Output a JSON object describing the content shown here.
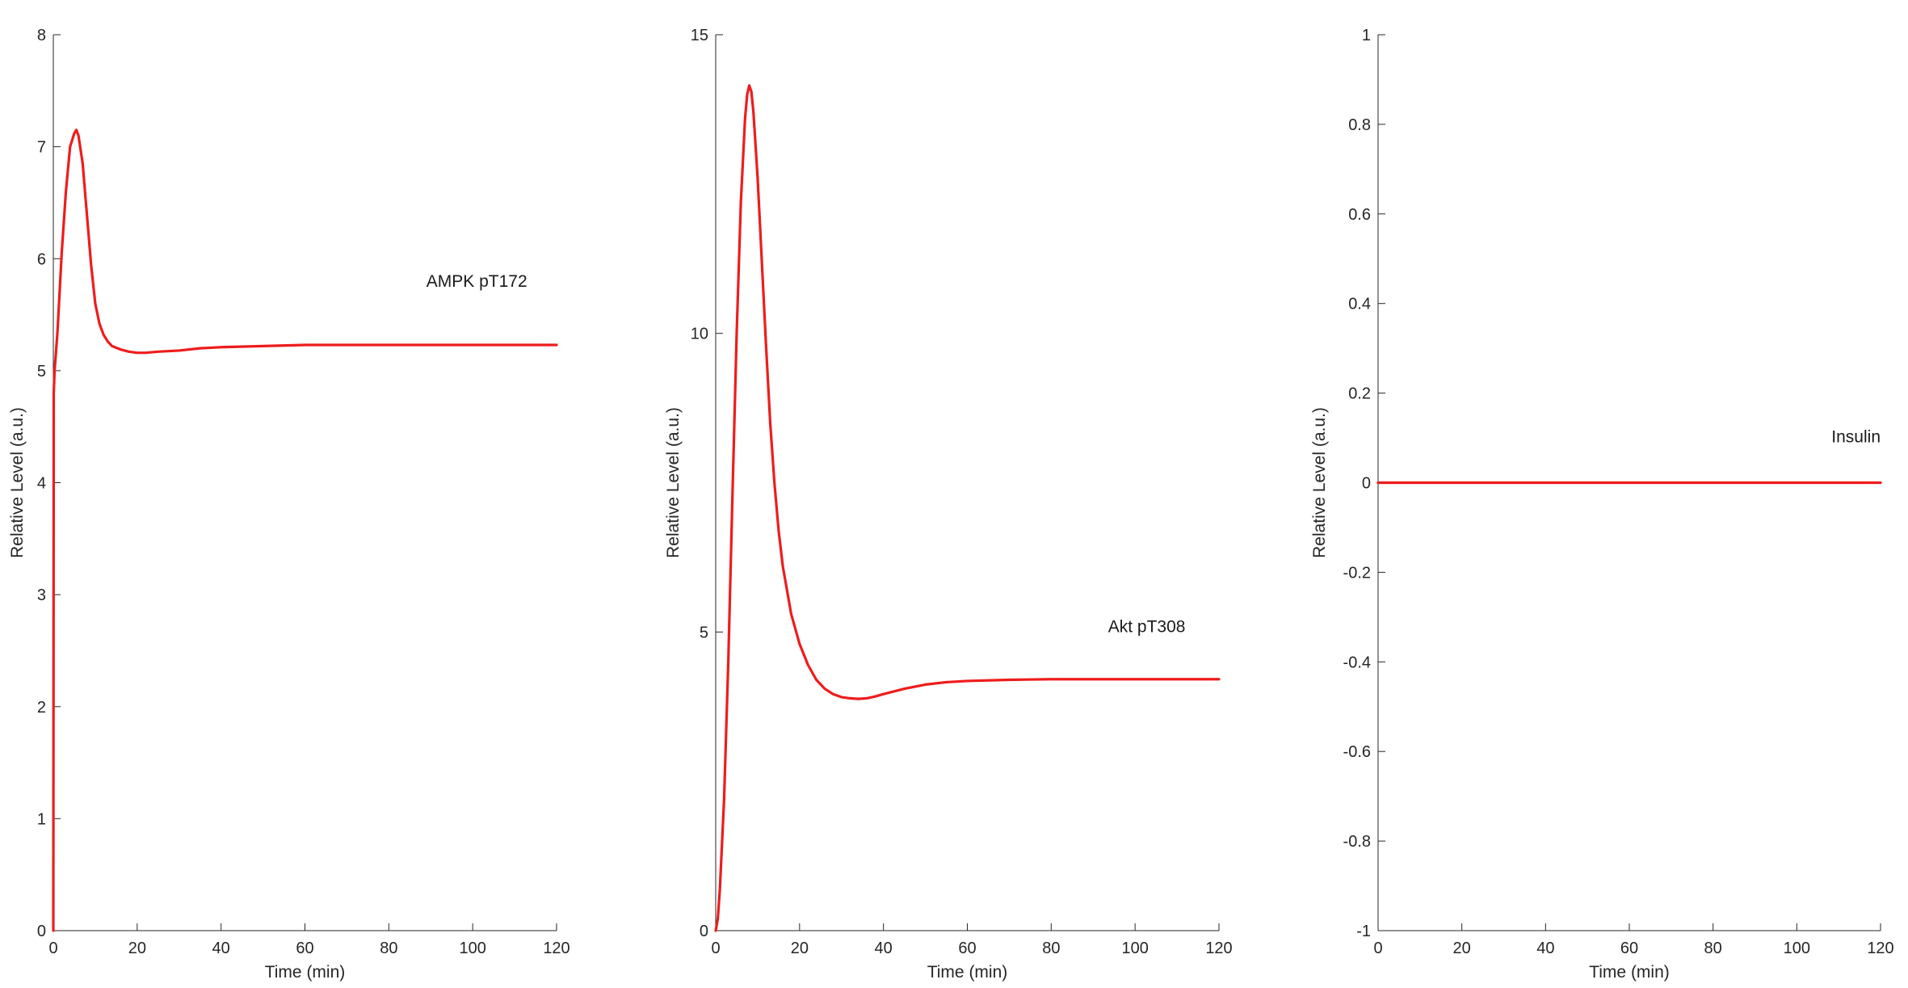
{
  "chart_data": [
    {
      "type": "line",
      "title": "",
      "xlabel": "Time (min)",
      "ylabel": "Relative Level (a.u.)",
      "xlim": [
        0,
        120
      ],
      "ylim": [
        0,
        8
      ],
      "xticks": [
        0,
        20,
        40,
        60,
        80,
        100,
        120
      ],
      "yticks": [
        0,
        1,
        2,
        3,
        4,
        5,
        6,
        7,
        8
      ],
      "xtick_labels": [
        "0",
        "20",
        "40",
        "60",
        "80",
        "100",
        "120"
      ],
      "ytick_labels": [
        "0",
        "1",
        "2",
        "3",
        "4",
        "5",
        "6",
        "7",
        "8"
      ],
      "grid": false,
      "annotation": {
        "text": "AMPK pT172",
        "x": 113,
        "y": 5.75
      },
      "series": [
        {
          "color": "#ee1c1c",
          "x": [
            0,
            0.1,
            0.3,
            0.5,
            1,
            1.5,
            2,
            3,
            4,
            5,
            5.5,
            6,
            7,
            8,
            9,
            10,
            11,
            12,
            13,
            14,
            16,
            18,
            20,
            22,
            25,
            30,
            35,
            40,
            50,
            60,
            70,
            80,
            90,
            100,
            110,
            120
          ],
          "y": [
            0,
            4.8,
            5.0,
            5.1,
            5.35,
            5.7,
            6.05,
            6.6,
            7.0,
            7.12,
            7.15,
            7.1,
            6.85,
            6.4,
            5.95,
            5.6,
            5.42,
            5.32,
            5.26,
            5.22,
            5.19,
            5.17,
            5.16,
            5.16,
            5.17,
            5.18,
            5.2,
            5.21,
            5.22,
            5.23,
            5.23,
            5.23,
            5.23,
            5.23,
            5.23,
            5.23
          ]
        }
      ]
    },
    {
      "type": "line",
      "title": "",
      "xlabel": "Time (min)",
      "ylabel": "Relative Level (a.u.)",
      "xlim": [
        0,
        120
      ],
      "ylim": [
        0,
        15
      ],
      "xticks": [
        0,
        20,
        40,
        60,
        80,
        100,
        120
      ],
      "yticks": [
        0,
        5,
        10,
        15
      ],
      "xtick_labels": [
        "0",
        "20",
        "40",
        "60",
        "80",
        "100",
        "120"
      ],
      "ytick_labels": [
        "0",
        "5",
        "10",
        "15"
      ],
      "grid": false,
      "annotation": {
        "text": "Akt pT308",
        "x": 112,
        "y": 5.0
      },
      "series": [
        {
          "color": "#ee1c1c",
          "x": [
            0,
            0.5,
            1,
            2,
            3,
            4,
            5,
            6,
            7,
            7.5,
            8,
            8.5,
            9,
            10,
            11,
            12,
            13,
            14,
            15,
            16,
            18,
            20,
            22,
            24,
            26,
            28,
            30,
            32,
            34,
            36,
            38,
            40,
            45,
            50,
            55,
            60,
            70,
            80,
            90,
            100,
            110,
            120
          ],
          "y": [
            0,
            0.2,
            0.7,
            2.2,
            4.5,
            7.3,
            10.0,
            12.2,
            13.6,
            14.0,
            14.15,
            14.05,
            13.7,
            12.6,
            11.2,
            9.8,
            8.5,
            7.5,
            6.7,
            6.1,
            5.3,
            4.8,
            4.45,
            4.2,
            4.05,
            3.96,
            3.91,
            3.89,
            3.88,
            3.89,
            3.92,
            3.96,
            4.05,
            4.12,
            4.16,
            4.18,
            4.2,
            4.21,
            4.21,
            4.21,
            4.21,
            4.21
          ]
        }
      ]
    },
    {
      "type": "line",
      "title": "",
      "xlabel": "Time (min)",
      "ylabel": "Relative Level (a.u.)",
      "xlim": [
        0,
        120
      ],
      "ylim": [
        -1,
        1
      ],
      "xticks": [
        0,
        20,
        40,
        60,
        80,
        100,
        120
      ],
      "yticks": [
        -1,
        -0.8,
        -0.6,
        -0.4,
        -0.2,
        0,
        0.2,
        0.4,
        0.6,
        0.8,
        1
      ],
      "xtick_labels": [
        "0",
        "20",
        "40",
        "60",
        "80",
        "100",
        "120"
      ],
      "ytick_labels": [
        "-1",
        "-0.8",
        "-0.6",
        "-0.4",
        "-0.2",
        "0",
        "0.2",
        "0.4",
        "0.6",
        "0.8",
        "1"
      ],
      "grid": false,
      "annotation": {
        "text": "Insulin",
        "x": 120,
        "y": 0.09
      },
      "series": [
        {
          "color": "#ee1c1c",
          "x": [
            0,
            120
          ],
          "y": [
            0,
            0
          ]
        }
      ]
    }
  ]
}
